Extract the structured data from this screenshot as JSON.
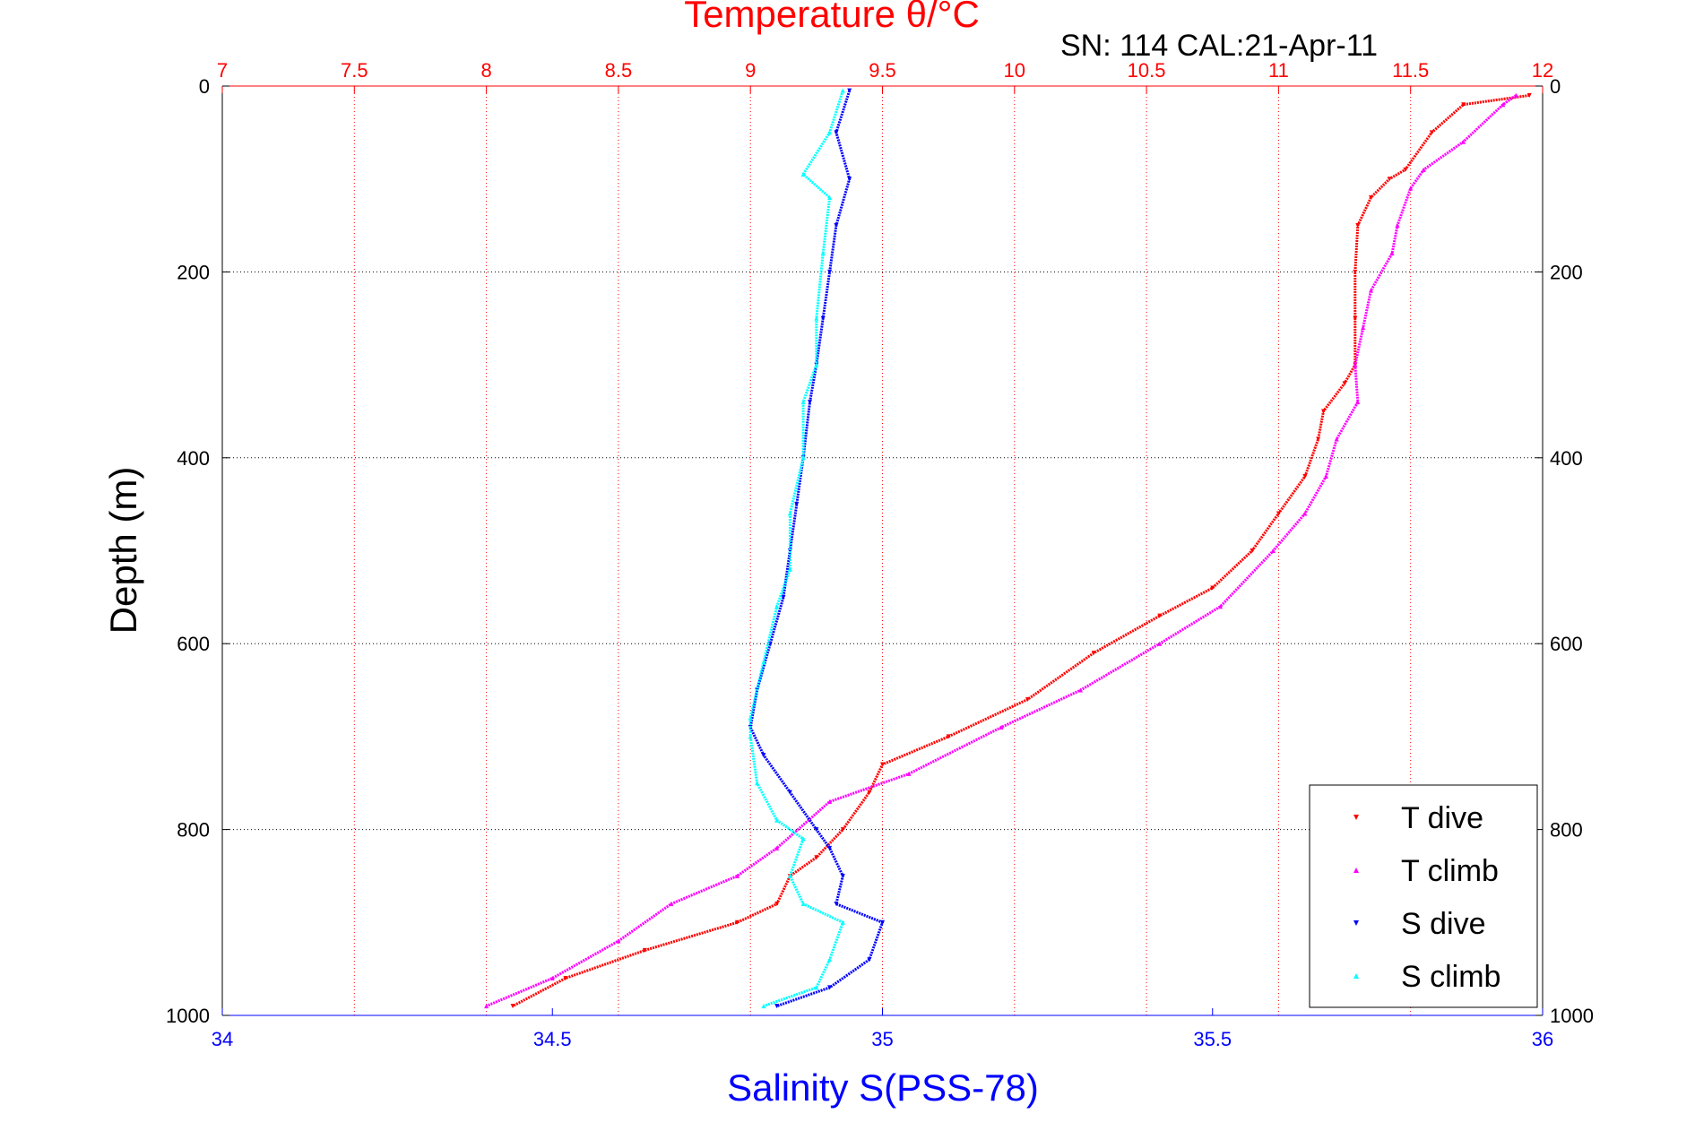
{
  "chart_data": {
    "type": "scatter",
    "title": "Temperature θ/°C",
    "subtitle": "SN: 114  CAL:21-Apr-11",
    "xlabel": "Salinity S(PSS-78)",
    "ylabel": "Depth (m)",
    "x_top": {
      "label": "Temperature θ/°C",
      "lim": [
        7,
        12
      ],
      "ticks": [
        "7",
        "7.5",
        "8",
        "8.5",
        "9",
        "9.5",
        "10",
        "10.5",
        "11",
        "11.5",
        "12"
      ],
      "color": "#ff0000"
    },
    "x_bottom": {
      "label": "Salinity S(PSS-78)",
      "lim": [
        34,
        36
      ],
      "ticks": [
        "34",
        "34.5",
        "35",
        "35.5",
        "36"
      ],
      "color": "#0000ff"
    },
    "y": {
      "lim": [
        0,
        1000
      ],
      "reversed": true,
      "ticks": [
        "0",
        "200",
        "400",
        "600",
        "800",
        "1000"
      ]
    },
    "grid": true,
    "legend_position": "bottom-right",
    "series": [
      {
        "name": "T dive",
        "axis": "top",
        "color": "#ff0000",
        "marker": "triangle-down",
        "points": [
          [
            11.95,
            10
          ],
          [
            11.7,
            20
          ],
          [
            11.58,
            50
          ],
          [
            11.48,
            90
          ],
          [
            11.42,
            100
          ],
          [
            11.35,
            120
          ],
          [
            11.3,
            150
          ],
          [
            11.29,
            200
          ],
          [
            11.29,
            250
          ],
          [
            11.29,
            300
          ],
          [
            11.25,
            320
          ],
          [
            11.17,
            350
          ],
          [
            11.15,
            380
          ],
          [
            11.1,
            420
          ],
          [
            11.0,
            460
          ],
          [
            10.9,
            500
          ],
          [
            10.75,
            540
          ],
          [
            10.55,
            570
          ],
          [
            10.3,
            610
          ],
          [
            10.05,
            660
          ],
          [
            9.75,
            700
          ],
          [
            9.5,
            730
          ],
          [
            9.45,
            760
          ],
          [
            9.35,
            800
          ],
          [
            9.25,
            830
          ],
          [
            9.15,
            850
          ],
          [
            9.1,
            880
          ],
          [
            8.95,
            900
          ],
          [
            8.6,
            930
          ],
          [
            8.3,
            960
          ],
          [
            8.1,
            990
          ]
        ]
      },
      {
        "name": "T climb",
        "axis": "top",
        "color": "#ff00ff",
        "marker": "triangle-up",
        "points": [
          [
            11.9,
            10
          ],
          [
            11.85,
            20
          ],
          [
            11.7,
            60
          ],
          [
            11.55,
            90
          ],
          [
            11.5,
            110
          ],
          [
            11.45,
            150
          ],
          [
            11.43,
            180
          ],
          [
            11.35,
            220
          ],
          [
            11.32,
            260
          ],
          [
            11.29,
            300
          ],
          [
            11.3,
            340
          ],
          [
            11.22,
            380
          ],
          [
            11.18,
            420
          ],
          [
            11.1,
            460
          ],
          [
            10.98,
            500
          ],
          [
            10.78,
            560
          ],
          [
            10.55,
            600
          ],
          [
            10.25,
            650
          ],
          [
            9.95,
            690
          ],
          [
            9.6,
            740
          ],
          [
            9.3,
            770
          ],
          [
            9.1,
            820
          ],
          [
            8.95,
            850
          ],
          [
            8.7,
            880
          ],
          [
            8.5,
            920
          ],
          [
            8.25,
            960
          ],
          [
            8.0,
            990
          ]
        ]
      },
      {
        "name": "S dive",
        "axis": "bottom",
        "color": "#0000ff",
        "marker": "triangle-down",
        "points": [
          [
            34.95,
            5
          ],
          [
            34.93,
            50
          ],
          [
            34.95,
            100
          ],
          [
            34.93,
            150
          ],
          [
            34.92,
            200
          ],
          [
            34.91,
            250
          ],
          [
            34.9,
            300
          ],
          [
            34.89,
            340
          ],
          [
            34.88,
            400
          ],
          [
            34.87,
            450
          ],
          [
            34.86,
            500
          ],
          [
            34.85,
            550
          ],
          [
            34.83,
            600
          ],
          [
            34.81,
            650
          ],
          [
            34.8,
            690
          ],
          [
            34.82,
            720
          ],
          [
            34.86,
            760
          ],
          [
            34.9,
            800
          ],
          [
            34.92,
            820
          ],
          [
            34.94,
            850
          ],
          [
            34.93,
            880
          ],
          [
            35.0,
            900
          ],
          [
            34.98,
            940
          ],
          [
            34.92,
            970
          ],
          [
            34.84,
            990
          ]
        ]
      },
      {
        "name": "S climb",
        "axis": "bottom",
        "color": "#00ffff",
        "marker": "triangle-up",
        "points": [
          [
            34.94,
            5
          ],
          [
            34.92,
            50
          ],
          [
            34.88,
            95
          ],
          [
            34.92,
            120
          ],
          [
            34.91,
            180
          ],
          [
            34.9,
            250
          ],
          [
            34.9,
            300
          ],
          [
            34.88,
            340
          ],
          [
            34.88,
            400
          ],
          [
            34.86,
            460
          ],
          [
            34.86,
            520
          ],
          [
            34.84,
            560
          ],
          [
            34.82,
            620
          ],
          [
            34.8,
            680
          ],
          [
            34.8,
            700
          ],
          [
            34.81,
            750
          ],
          [
            34.84,
            790
          ],
          [
            34.88,
            810
          ],
          [
            34.86,
            850
          ],
          [
            34.88,
            880
          ],
          [
            34.94,
            900
          ],
          [
            34.92,
            940
          ],
          [
            34.9,
            970
          ],
          [
            34.82,
            990
          ]
        ]
      }
    ]
  }
}
